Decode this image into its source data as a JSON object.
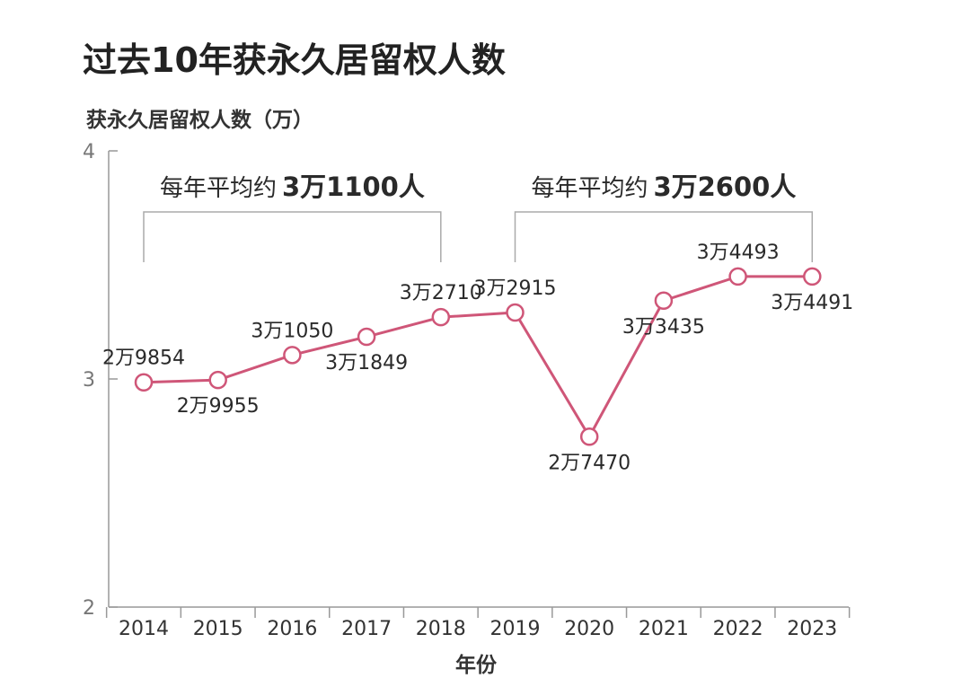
{
  "title": "过去10年获永久居留权人数",
  "colors": {
    "line": "#cf5678",
    "axis": "#999999",
    "bracket": "#aaaaaa"
  },
  "chart_data": {
    "type": "line",
    "ylabel": "获永久居留权人数（万）",
    "xlabel": "年份",
    "ylim": [
      2,
      4
    ],
    "yticks": [
      "2",
      "3",
      "4"
    ],
    "categories": [
      "2014",
      "2015",
      "2016",
      "2017",
      "2018",
      "2019",
      "2020",
      "2021",
      "2022",
      "2023"
    ],
    "values": [
      2.9854,
      2.9955,
      3.105,
      3.1849,
      3.271,
      3.2915,
      2.747,
      3.3435,
      3.4493,
      3.4491
    ],
    "labels": [
      "2万9854",
      "2万9955",
      "3万1050",
      "3万1849",
      "3万2710",
      "3万2915",
      "2万7470",
      "3万3435",
      "3万4493",
      "3万4491"
    ],
    "label_positions": [
      "above",
      "below",
      "above",
      "below",
      "above",
      "above",
      "below",
      "below",
      "above",
      "below"
    ],
    "annotations": [
      {
        "prefix": "每年平均约",
        "emphasis": "3万1100人",
        "from": "2014",
        "to": "2018"
      },
      {
        "prefix": "每年平均约",
        "emphasis": "3万2600人",
        "from": "2019",
        "to": "2023"
      }
    ],
    "grid": false
  }
}
